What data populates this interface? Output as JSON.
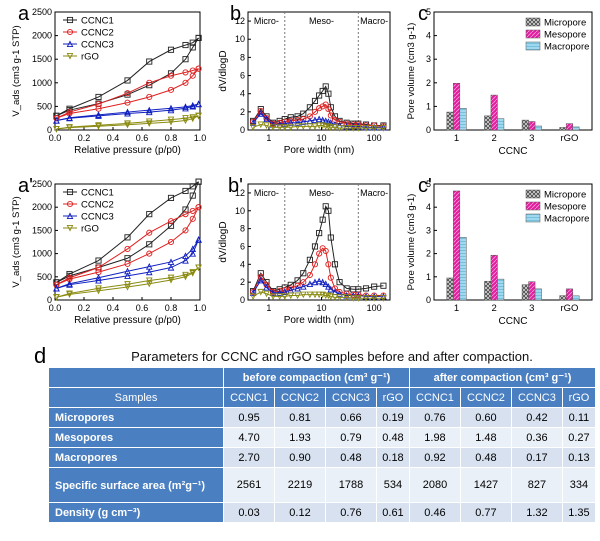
{
  "chart_data": [
    {
      "id": "a",
      "type": "line",
      "panel_label": "a",
      "ylabel": "V_ads (cm3 g-1 STP)",
      "xlabel": "Relative pressure (p/p0)",
      "xlim": [
        0.0,
        1.0
      ],
      "ylim": [
        0,
        2500
      ],
      "xticks": [
        "0.0",
        "0.2",
        "0.4",
        "0.6",
        "0.8",
        "1.0"
      ],
      "yticks": [
        "0",
        "500",
        "1000",
        "1500",
        "2000",
        "2500"
      ],
      "legend": [
        "CCNC1",
        "CCNC2",
        "CCNC3",
        "rGO"
      ],
      "series": [
        {
          "name": "CCNC1",
          "color": "#222222",
          "marker": "square",
          "x": [
            0.01,
            0.1,
            0.3,
            0.5,
            0.65,
            0.8,
            0.9,
            0.95,
            0.99
          ],
          "adsorption": [
            300,
            420,
            560,
            750,
            950,
            1200,
            1500,
            1750,
            1950
          ],
          "desorption": [
            300,
            450,
            700,
            1050,
            1450,
            1700,
            1800,
            1850,
            1950
          ]
        },
        {
          "name": "CCNC2",
          "color": "#e02020",
          "marker": "circle",
          "x": [
            0.01,
            0.1,
            0.3,
            0.5,
            0.65,
            0.8,
            0.9,
            0.95,
            0.99
          ],
          "adsorption": [
            250,
            350,
            450,
            580,
            700,
            850,
            1000,
            1150,
            1300
          ],
          "desorption": [
            250,
            380,
            550,
            780,
            1000,
            1150,
            1220,
            1260,
            1300
          ]
        },
        {
          "name": "CCNC3",
          "color": "#1020c0",
          "marker": "triangle-up",
          "x": [
            0.01,
            0.1,
            0.3,
            0.5,
            0.65,
            0.8,
            0.9,
            0.95,
            0.99
          ],
          "adsorption": [
            200,
            250,
            300,
            350,
            380,
            420,
            460,
            500,
            550
          ],
          "desorption": [
            200,
            260,
            320,
            380,
            420,
            460,
            490,
            520,
            550
          ]
        },
        {
          "name": "rGO",
          "color": "#8a8a10",
          "marker": "triangle-down",
          "x": [
            0.01,
            0.1,
            0.3,
            0.5,
            0.65,
            0.8,
            0.9,
            0.95,
            0.99
          ],
          "adsorption": [
            20,
            50,
            80,
            110,
            140,
            170,
            200,
            240,
            300
          ],
          "desorption": [
            20,
            60,
            100,
            140,
            180,
            220,
            250,
            270,
            300
          ]
        }
      ]
    },
    {
      "id": "b",
      "type": "scatter",
      "panel_label": "b",
      "ylabel": "dV/dlogD",
      "xlabel": "Pore width (nm)",
      "xscale": "log",
      "xlim": [
        0.4,
        200
      ],
      "ylim": [
        0,
        13
      ],
      "xticks": [
        "1",
        "10",
        "100"
      ],
      "xtick_values": [
        1,
        10,
        100
      ],
      "yticks": [
        "0",
        "2",
        "4",
        "6",
        "8",
        "10",
        "12"
      ],
      "regions": [
        "Micro-",
        "Meso-",
        "Macro-"
      ],
      "region_bounds": [
        2,
        50
      ],
      "series": [
        {
          "name": "CCNC1",
          "color": "#222222",
          "marker": "square",
          "x": [
            0.5,
            0.7,
            0.9,
            1.2,
            1.6,
            2.0,
            2.6,
            3.5,
            4.5,
            6,
            7.5,
            9,
            10.5,
            12,
            13.5,
            15,
            18,
            22,
            30,
            40,
            50,
            70,
            100,
            150
          ],
          "y": [
            1.0,
            2.3,
            1.5,
            0.8,
            1.0,
            1.2,
            1.4,
            1.5,
            1.8,
            2.5,
            3.2,
            3.8,
            4.3,
            4.8,
            4.0,
            2.5,
            1.5,
            1.0,
            0.8,
            0.7,
            0.7,
            0.6,
            0.5,
            0.5
          ]
        },
        {
          "name": "CCNC2",
          "color": "#e02020",
          "marker": "circle",
          "x": [
            0.5,
            0.7,
            0.9,
            1.2,
            1.6,
            2.0,
            2.6,
            3.5,
            4.5,
            6,
            7.5,
            9,
            10.5,
            12,
            13.5,
            15,
            18,
            22,
            30,
            40,
            50,
            70,
            100,
            150
          ],
          "y": [
            0.9,
            2.1,
            1.3,
            0.7,
            0.8,
            0.9,
            1.0,
            1.1,
            1.2,
            1.5,
            2.0,
            2.4,
            2.6,
            2.8,
            2.3,
            1.6,
            1.1,
            0.9,
            0.7,
            0.6,
            0.6,
            0.5,
            0.5,
            0.4
          ]
        },
        {
          "name": "CCNC3",
          "color": "#1020c0",
          "marker": "triangle-up",
          "x": [
            0.5,
            0.7,
            0.9,
            1.2,
            1.6,
            2.0,
            2.6,
            3.5,
            4.5,
            6,
            7.5,
            9,
            10.5,
            12,
            13.5,
            15,
            18,
            22,
            30,
            40,
            50,
            70,
            100,
            150
          ],
          "y": [
            0.8,
            1.8,
            1.2,
            0.6,
            0.6,
            0.7,
            0.8,
            0.8,
            0.9,
            1.0,
            1.1,
            1.2,
            1.1,
            1.0,
            0.9,
            0.8,
            0.6,
            0.5,
            0.4,
            0.4,
            0.4,
            0.3,
            0.3,
            0.3
          ]
        },
        {
          "name": "rGO",
          "color": "#8a8a10",
          "marker": "triangle-down",
          "x": [
            0.5,
            0.7,
            0.9,
            1.2,
            1.6,
            2.0,
            2.6,
            3.5,
            4.5,
            6,
            7.5,
            9,
            10.5,
            12,
            13.5,
            15,
            18,
            22,
            30,
            40,
            50,
            70,
            100,
            150
          ],
          "y": [
            0.3,
            0.6,
            0.5,
            0.3,
            0.3,
            0.3,
            0.3,
            0.4,
            0.4,
            0.4,
            0.4,
            0.5,
            0.5,
            0.4,
            0.4,
            0.3,
            0.3,
            0.2,
            0.2,
            0.2,
            0.2,
            0.2,
            0.2,
            0.2
          ]
        }
      ]
    },
    {
      "id": "c",
      "type": "bar",
      "panel_label": "c",
      "ylabel": "Pore volume (cm3 g-1)",
      "xlabel": "CCNC",
      "categories": [
        "1",
        "2",
        "3",
        "rGO"
      ],
      "ylim": [
        0,
        5
      ],
      "yticks": [
        "0",
        "1",
        "2",
        "3",
        "4",
        "5"
      ],
      "legend_position": "top-right",
      "series": [
        {
          "name": "Micropore",
          "color": "#888888",
          "pattern": "crosshatch",
          "values": [
            0.76,
            0.6,
            0.42,
            0.11
          ]
        },
        {
          "name": "Mesopore",
          "color": "#e020a0",
          "pattern": "diagonal",
          "values": [
            1.98,
            1.48,
            0.36,
            0.27
          ]
        },
        {
          "name": "Macropore",
          "color": "#9fd9f0",
          "pattern": "horizontal",
          "values": [
            0.92,
            0.48,
            0.17,
            0.13
          ]
        }
      ]
    },
    {
      "id": "a2",
      "type": "line",
      "panel_label": "a'",
      "ylabel": "V_ads (cm3 g-1 STP)",
      "xlabel": "Relative pressure (p/p0)",
      "xlim": [
        0.0,
        1.0
      ],
      "ylim": [
        0,
        2500
      ],
      "xticks": [
        "0.0",
        "0.2",
        "0.4",
        "0.6",
        "0.8",
        "1.0"
      ],
      "yticks": [
        "0",
        "500",
        "1000",
        "1500",
        "2000",
        "2500"
      ],
      "legend": [
        "CCNC1",
        "CCNC2",
        "CCNC3",
        "rGO"
      ],
      "series": [
        {
          "name": "CCNC1",
          "color": "#222222",
          "marker": "square",
          "x": [
            0.01,
            0.1,
            0.3,
            0.5,
            0.65,
            0.8,
            0.9,
            0.95,
            0.99
          ],
          "adsorption": [
            380,
            520,
            700,
            900,
            1200,
            1600,
            1950,
            2250,
            2550
          ],
          "desorption": [
            380,
            560,
            850,
            1350,
            1850,
            2200,
            2350,
            2450,
            2550
          ]
        },
        {
          "name": "CCNC2",
          "color": "#e02020",
          "marker": "circle",
          "x": [
            0.01,
            0.1,
            0.3,
            0.5,
            0.65,
            0.8,
            0.9,
            0.95,
            0.99
          ],
          "adsorption": [
            330,
            450,
            600,
            780,
            1000,
            1250,
            1500,
            1750,
            2000
          ],
          "desorption": [
            330,
            480,
            700,
            1100,
            1450,
            1700,
            1850,
            1920,
            2000
          ]
        },
        {
          "name": "CCNC3",
          "color": "#1020c0",
          "marker": "triangle-up",
          "x": [
            0.01,
            0.1,
            0.3,
            0.5,
            0.65,
            0.8,
            0.9,
            0.95,
            0.99
          ],
          "adsorption": [
            250,
            330,
            420,
            520,
            600,
            700,
            850,
            1000,
            1300
          ],
          "desorption": [
            250,
            350,
            480,
            620,
            720,
            820,
            950,
            1100,
            1300
          ]
        },
        {
          "name": "rGO",
          "color": "#8a8a10",
          "marker": "triangle-down",
          "x": [
            0.01,
            0.1,
            0.3,
            0.5,
            0.65,
            0.8,
            0.9,
            0.95,
            0.99
          ],
          "adsorption": [
            60,
            120,
            200,
            280,
            350,
            430,
            500,
            580,
            700
          ],
          "desorption": [
            60,
            140,
            250,
            340,
            420,
            480,
            540,
            600,
            700
          ]
        }
      ]
    },
    {
      "id": "b2",
      "type": "scatter",
      "panel_label": "b'",
      "ylabel": "dV/dlogD",
      "xlabel": "Pore width (nm)",
      "xscale": "log",
      "xlim": [
        0.4,
        200
      ],
      "ylim": [
        0,
        13
      ],
      "xticks": [
        "1",
        "10",
        "100"
      ],
      "xtick_values": [
        1,
        10,
        100
      ],
      "yticks": [
        "0",
        "2",
        "4",
        "6",
        "8",
        "10",
        "12"
      ],
      "regions": [
        "Micro-",
        "Meso-",
        "Macro-"
      ],
      "region_bounds": [
        2,
        50
      ],
      "series": [
        {
          "name": "CCNC1",
          "color": "#222222",
          "marker": "square",
          "x": [
            0.5,
            0.7,
            0.9,
            1.2,
            1.6,
            2.0,
            2.6,
            3.5,
            4.5,
            6,
            7.5,
            9,
            10.5,
            12,
            13.5,
            15,
            18,
            22,
            30,
            40,
            50,
            70,
            100,
            150
          ],
          "y": [
            1.0,
            3.0,
            2.0,
            1.0,
            1.2,
            1.4,
            1.7,
            2.2,
            3.0,
            4.5,
            6.0,
            7.5,
            9.0,
            10.5,
            10.0,
            7.0,
            4.0,
            2.0,
            1.3,
            1.2,
            1.2,
            1.3,
            1.5,
            1.6
          ]
        },
        {
          "name": "CCNC2",
          "color": "#e02020",
          "marker": "circle",
          "x": [
            0.5,
            0.7,
            0.9,
            1.2,
            1.6,
            2.0,
            2.6,
            3.5,
            4.5,
            6,
            7.5,
            9,
            10.5,
            12,
            13.5,
            15,
            18,
            22,
            30,
            40,
            50,
            70,
            100,
            150
          ],
          "y": [
            0.9,
            2.6,
            1.7,
            0.9,
            1.0,
            1.1,
            1.3,
            1.6,
            2.0,
            2.8,
            4.0,
            5.2,
            5.8,
            5.5,
            4.0,
            2.5,
            1.3,
            0.9,
            0.7,
            0.6,
            0.6,
            0.5,
            0.5,
            0.5
          ]
        },
        {
          "name": "CCNC3",
          "color": "#1020c0",
          "marker": "triangle-up",
          "x": [
            0.5,
            0.7,
            0.9,
            1.2,
            1.6,
            2.0,
            2.6,
            3.5,
            4.5,
            6,
            7.5,
            9,
            10.5,
            12,
            13.5,
            15,
            18,
            22,
            30,
            40,
            50,
            70,
            100,
            150
          ],
          "y": [
            0.8,
            2.2,
            1.4,
            0.8,
            0.8,
            0.9,
            1.1,
            1.3,
            1.5,
            1.8,
            2.0,
            2.1,
            2.0,
            1.8,
            1.5,
            1.2,
            0.9,
            0.7,
            0.5,
            0.5,
            0.5,
            0.4,
            0.4,
            0.4
          ]
        },
        {
          "name": "rGO",
          "color": "#8a8a10",
          "marker": "triangle-down",
          "x": [
            0.5,
            0.7,
            0.9,
            1.2,
            1.6,
            2.0,
            2.6,
            3.5,
            4.5,
            6,
            7.5,
            9,
            10.5,
            12,
            13.5,
            15,
            18,
            22,
            30,
            40,
            50,
            70,
            100,
            150
          ],
          "y": [
            0.4,
            0.9,
            0.7,
            0.4,
            0.4,
            0.4,
            0.5,
            0.5,
            0.6,
            0.6,
            0.6,
            0.6,
            0.6,
            0.5,
            0.5,
            0.4,
            0.3,
            0.3,
            0.3,
            0.2,
            0.2,
            0.2,
            0.2,
            0.2
          ]
        }
      ]
    },
    {
      "id": "c2",
      "type": "bar",
      "panel_label": "c'",
      "ylabel": "Pore volume (cm3 g-1)",
      "xlabel": "CCNC",
      "categories": [
        "1",
        "2",
        "3",
        "rGO"
      ],
      "ylim": [
        0,
        5
      ],
      "yticks": [
        "0",
        "1",
        "2",
        "3",
        "4",
        "5"
      ],
      "legend_position": "top-right",
      "series": [
        {
          "name": "Micropore",
          "color": "#888888",
          "pattern": "crosshatch",
          "values": [
            0.95,
            0.81,
            0.66,
            0.19
          ]
        },
        {
          "name": "Mesopore",
          "color": "#e020a0",
          "pattern": "diagonal",
          "values": [
            4.7,
            1.93,
            0.79,
            0.48
          ]
        },
        {
          "name": "Macropore",
          "color": "#9fd9f0",
          "pattern": "horizontal",
          "values": [
            2.7,
            0.9,
            0.48,
            0.18
          ]
        }
      ]
    },
    {
      "id": "d",
      "type": "table",
      "panel_label": "d",
      "caption": "Parameters for CCNC and rGO samples before and after compaction.",
      "group_headers": [
        "before compaction (cm³ g⁻¹)",
        "after compaction (cm³ g⁻¹)"
      ],
      "columns": [
        "Samples",
        "CCNC1",
        "CCNC2",
        "CCNC3",
        "rGO",
        "CCNC1",
        "CCNC2",
        "CCNC3",
        "rGO"
      ],
      "rows": [
        {
          "label": "Micropores",
          "values": [
            "0.95",
            "0.81",
            "0.66",
            "0.19",
            "0.76",
            "0.60",
            "0.42",
            "0.11"
          ]
        },
        {
          "label": "Mesopores",
          "values": [
            "4.70",
            "1.93",
            "0.79",
            "0.48",
            "1.98",
            "1.48",
            "0.36",
            "0.27"
          ]
        },
        {
          "label": "Macropores",
          "values": [
            "2.70",
            "0.90",
            "0.48",
            "0.18",
            "0.92",
            "0.48",
            "0.17",
            "0.13"
          ]
        },
        {
          "label": "Specific surface area (m²g⁻¹)",
          "values": [
            "2561",
            "2219",
            "1788",
            "534",
            "2080",
            "1427",
            "827",
            "334"
          ]
        },
        {
          "label": "Density (g cm⁻³)",
          "values": [
            "0.03",
            "0.12",
            "0.76",
            "0.61",
            "0.46",
            "0.77",
            "1.32",
            "1.35"
          ]
        }
      ]
    }
  ]
}
